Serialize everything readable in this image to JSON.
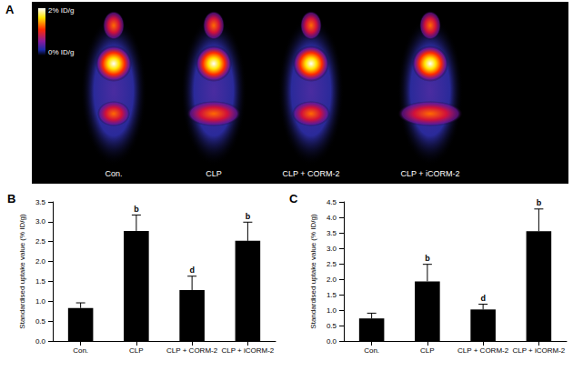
{
  "image_panel": {
    "panel": "A",
    "color_scale": {
      "max_label": "2% ID/g",
      "min_label": "0% ID/g"
    },
    "labels": [
      "Con.",
      "CLP",
      "CLP + CORM-2",
      "CLP + iCORM-2"
    ]
  },
  "chart_data": [
    {
      "type": "bar",
      "title": "B",
      "categories": [
        "Con.",
        "CLP",
        "CLP + CORM-2",
        "CLP + iCORM-2"
      ],
      "values": [
        0.83,
        2.77,
        1.28,
        2.52
      ],
      "errors": [
        0.13,
        0.4,
        0.35,
        0.47
      ],
      "annotations": [
        null,
        "b",
        "d",
        "b"
      ],
      "color": "#000000",
      "y_label": "Standardised uptake value (% ID/g)",
      "ylim": [
        0,
        3.5
      ],
      "yticks": [
        {
          "value": 0,
          "label": "0.0"
        },
        0.5,
        {
          "value": 1,
          "label": "1.0"
        },
        1.5,
        {
          "value": 2,
          "label": "2.0"
        },
        2.5,
        {
          "value": 3,
          "label": "3.0"
        },
        3.5
      ],
      "grid": false
    },
    {
      "type": "bar",
      "title": "C",
      "categories": [
        "Con.",
        "CLP",
        "CLP + CORM-2",
        "CLP + iCORM-2"
      ],
      "values": [
        0.73,
        1.93,
        1.02,
        3.55
      ],
      "errors": [
        0.17,
        0.55,
        0.17,
        0.72
      ],
      "annotations": [
        null,
        "b",
        "d",
        "b"
      ],
      "color": "#000000",
      "y_label": "Standardised uptake value (% ID/g)",
      "ylim": [
        0,
        4.5
      ],
      "yticks": [
        {
          "value": 0,
          "label": "0.0"
        },
        0.5,
        {
          "value": 1,
          "label": "1.0"
        },
        1.5,
        {
          "value": 2,
          "label": "2.0"
        },
        2.5,
        {
          "value": 3,
          "label": "3.0"
        },
        3.5,
        {
          "value": 4,
          "label": "4.0"
        },
        4.5
      ],
      "grid": false
    }
  ]
}
